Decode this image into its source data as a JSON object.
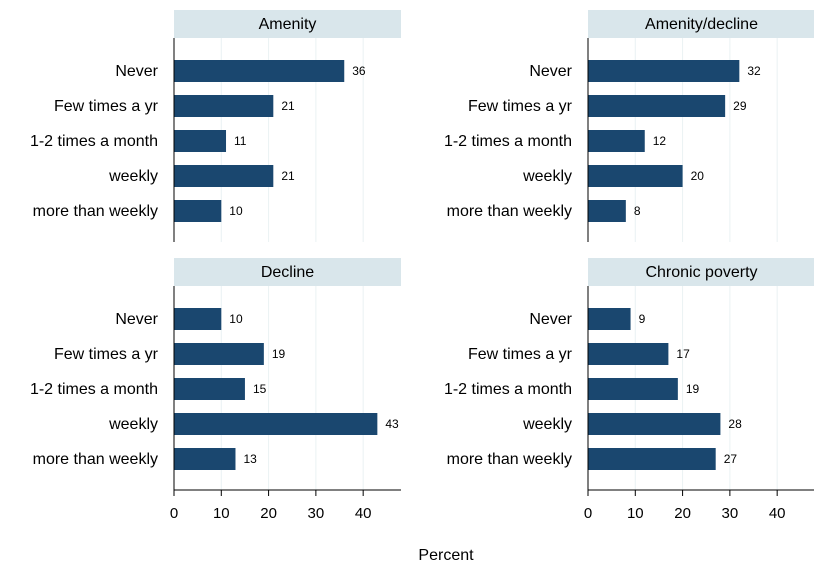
{
  "chart_data": [
    {
      "type": "bar",
      "orientation": "horizontal",
      "title": "Amenity",
      "categories": [
        "Never",
        "Few times a yr",
        "1-2 times a month",
        "weekly",
        "more than weekly"
      ],
      "values": [
        36,
        21,
        11,
        21,
        10
      ],
      "color": "#1a476f",
      "xlim": [
        0,
        48
      ],
      "xticks": [
        0,
        10,
        20,
        30,
        40
      ],
      "show_xtick_labels": false,
      "grid": true
    },
    {
      "type": "bar",
      "orientation": "horizontal",
      "title": "Amenity/decline",
      "categories": [
        "Never",
        "Few times a yr",
        "1-2 times a month",
        "weekly",
        "more than weekly"
      ],
      "values": [
        32,
        29,
        12,
        20,
        8
      ],
      "color": "#1a476f",
      "xlim": [
        0,
        48
      ],
      "xticks": [
        0,
        10,
        20,
        30,
        40
      ],
      "show_xtick_labels": false,
      "grid": true
    },
    {
      "type": "bar",
      "orientation": "horizontal",
      "title": "Decline",
      "categories": [
        "Never",
        "Few times a yr",
        "1-2 times a month",
        "weekly",
        "more than weekly"
      ],
      "values": [
        10,
        19,
        15,
        43,
        13
      ],
      "color": "#1a476f",
      "xlim": [
        0,
        48
      ],
      "xticks": [
        0,
        10,
        20,
        30,
        40
      ],
      "show_xtick_labels": true,
      "grid": true
    },
    {
      "type": "bar",
      "orientation": "horizontal",
      "title": "Chronic poverty",
      "categories": [
        "Never",
        "Few times a yr",
        "1-2 times a month",
        "weekly",
        "more than weekly"
      ],
      "values": [
        9,
        17,
        19,
        28,
        27
      ],
      "color": "#1a476f",
      "xlim": [
        0,
        48
      ],
      "xticks": [
        0,
        10,
        20,
        30,
        40
      ],
      "show_xtick_labels": true,
      "grid": true
    }
  ],
  "xlabel": "Percent"
}
